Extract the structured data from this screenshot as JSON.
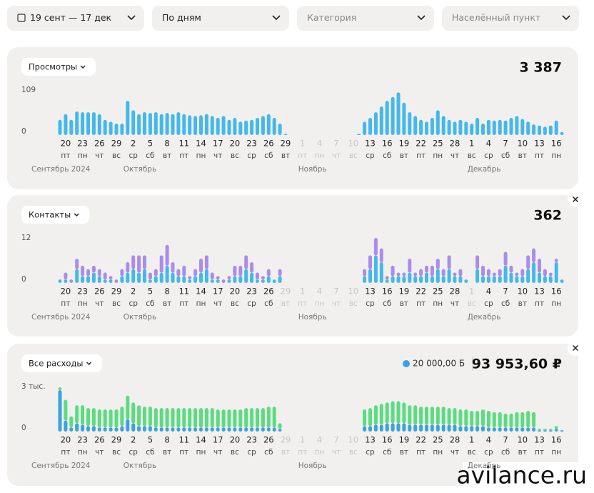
{
  "filters": [
    "19 сент — 17 дек",
    "По дням",
    "Категория",
    "Населённый пункт"
  ],
  "watermark": "avilance.ru",
  "chart_data": [
    {
      "type": "bar",
      "title": "Просмотры",
      "total": "3 387",
      "color": "#45b8ea",
      "ylim": [
        0,
        109
      ],
      "yticks": [
        0,
        109
      ],
      "categories": [
        null,
        "20",
        null,
        null,
        "23",
        null,
        null,
        "26",
        null,
        null,
        "29",
        null,
        null,
        "2",
        null,
        null,
        "5",
        null,
        null,
        "8",
        null,
        null,
        "11",
        null,
        null,
        "14",
        null,
        null,
        "17",
        null,
        null,
        "20",
        null,
        null,
        "23",
        null,
        null,
        "26",
        null,
        null,
        "29",
        null,
        null,
        "1",
        null,
        null,
        "4",
        null,
        null,
        "7",
        null,
        null,
        "10",
        null,
        null,
        "13",
        null,
        null,
        "16",
        null,
        null,
        "19",
        null,
        null,
        "22",
        null,
        null,
        "25",
        null,
        null,
        "28",
        null,
        null,
        "1",
        null,
        null,
        "4",
        null,
        null,
        "7",
        null,
        null,
        "10",
        null,
        null,
        "13",
        null,
        null,
        "16",
        null
      ],
      "weekdays": [
        null,
        "пт",
        null,
        null,
        "пн",
        null,
        null,
        "чт",
        null,
        null,
        "вс",
        null,
        null,
        "ср",
        null,
        null,
        "сб",
        null,
        null,
        "вт",
        null,
        null,
        "пт",
        null,
        null,
        "пн",
        null,
        null,
        "чт",
        null,
        null,
        "вс",
        null,
        null,
        "ср",
        null,
        null,
        "сб",
        null,
        null,
        "вт",
        null,
        null,
        "пт",
        null,
        null,
        "пн",
        null,
        null,
        "чт",
        null,
        null,
        "вс",
        null,
        null,
        "ср",
        null,
        null,
        "сб",
        null,
        null,
        "вт",
        null,
        null,
        "пт",
        null,
        null,
        "пн",
        null,
        null,
        "чт",
        null,
        null,
        "вс",
        null,
        null,
        "ср",
        null,
        null,
        "сб",
        null,
        null,
        "вт",
        null,
        null,
        "пт",
        null,
        null,
        "пн",
        null
      ],
      "months": [
        "Сентябрь 2024",
        null,
        null,
        null,
        null,
        null,
        null,
        null,
        null,
        null,
        null,
        null,
        "Октябрь",
        null,
        null,
        null,
        null,
        null,
        null,
        null,
        null,
        null,
        null,
        null,
        null,
        null,
        null,
        null,
        null,
        null,
        null,
        null,
        null,
        null,
        null,
        null,
        null,
        null,
        null,
        null,
        null,
        null,
        null,
        "Ноябрь",
        null,
        null,
        null,
        null,
        null,
        null,
        null,
        null,
        null,
        null,
        null,
        null,
        null,
        null,
        null,
        null,
        null,
        null,
        null,
        null,
        null,
        null,
        null,
        null,
        null,
        null,
        null,
        null,
        null,
        "Декабрь",
        null,
        null,
        null,
        null,
        null,
        null,
        null,
        null,
        null,
        null,
        null,
        null,
        null,
        null,
        null,
        null
      ],
      "values": [
        40,
        55,
        40,
        62,
        60,
        60,
        60,
        55,
        40,
        35,
        30,
        30,
        90,
        65,
        55,
        60,
        58,
        60,
        55,
        58,
        55,
        60,
        55,
        52,
        50,
        52,
        55,
        50,
        45,
        50,
        40,
        45,
        35,
        38,
        40,
        45,
        50,
        55,
        45,
        30,
        3,
        0,
        0,
        0,
        0,
        0,
        0,
        0,
        0,
        0,
        0,
        0,
        0,
        3,
        35,
        45,
        60,
        75,
        90,
        100,
        112,
        85,
        60,
        50,
        40,
        35,
        45,
        65,
        50,
        40,
        35,
        40,
        35,
        30,
        45,
        30,
        40,
        38,
        40,
        38,
        45,
        50,
        42,
        35,
        28,
        25,
        22,
        25,
        38,
        8
      ]
    },
    {
      "type": "bar",
      "title": "Контакты",
      "total": "362",
      "ylim": [
        0,
        12
      ],
      "yticks": [
        0,
        12
      ],
      "categories": [
        null,
        "20",
        null,
        null,
        "23",
        null,
        null,
        "26",
        null,
        null,
        "29",
        null,
        null,
        "2",
        null,
        null,
        "5",
        null,
        null,
        "8",
        null,
        null,
        "11",
        null,
        null,
        "14",
        null,
        null,
        "17",
        null,
        null,
        "20",
        null,
        null,
        "23",
        null,
        null,
        "26",
        null,
        null,
        "29",
        null,
        null,
        "1",
        null,
        null,
        "4",
        null,
        null,
        "7",
        null,
        null,
        "10",
        null,
        null,
        "13",
        null,
        null,
        "16",
        null,
        null,
        "19",
        null,
        null,
        "22",
        null,
        null,
        "25",
        null,
        null,
        "28",
        null,
        null,
        "1",
        null,
        null,
        "4",
        null,
        null,
        "7",
        null,
        null,
        "10",
        null,
        null,
        "13",
        null,
        null,
        "16",
        null
      ],
      "weekdays": [
        null,
        "пт",
        null,
        null,
        "пн",
        null,
        null,
        "чт",
        null,
        null,
        "вс",
        null,
        null,
        "ср",
        null,
        null,
        "сб",
        null,
        null,
        "вт",
        null,
        null,
        "пт",
        null,
        null,
        "пн",
        null,
        null,
        "чт",
        null,
        null,
        "вс",
        null,
        null,
        "ср",
        null,
        null,
        "сб",
        null,
        null,
        "вт",
        null,
        null,
        "пт",
        null,
        null,
        "пн",
        null,
        null,
        "чт",
        null,
        null,
        "вс",
        null,
        null,
        "ср",
        null,
        null,
        "сб",
        null,
        null,
        "вт",
        null,
        null,
        "пт",
        null,
        null,
        "пн",
        null,
        null,
        "чт",
        null,
        null,
        "вс",
        null,
        null,
        "ср",
        null,
        null,
        "сб",
        null,
        null,
        "вт",
        null,
        null,
        "пт",
        null,
        null,
        "пн",
        null
      ],
      "months": [
        "Сентябрь 2024",
        null,
        null,
        null,
        null,
        null,
        null,
        null,
        null,
        null,
        null,
        null,
        "Октябрь",
        null,
        null,
        null,
        null,
        null,
        null,
        null,
        null,
        null,
        null,
        null,
        null,
        null,
        null,
        null,
        null,
        null,
        null,
        null,
        null,
        null,
        null,
        null,
        null,
        null,
        null,
        null,
        null,
        null,
        null,
        "Ноябрь",
        null,
        null,
        null,
        null,
        null,
        null,
        null,
        null,
        null,
        null,
        null,
        null,
        null,
        null,
        null,
        null,
        null,
        null,
        null,
        null,
        null,
        null,
        null,
        null,
        null,
        null,
        null,
        null,
        null,
        "Декабрь",
        null,
        null,
        null,
        null,
        null,
        null,
        null,
        null,
        null,
        null,
        null,
        null,
        null,
        null,
        null,
        null
      ],
      "series": [
        {
          "color": "#45b8ea",
          "values": [
            1,
            1,
            0,
            4,
            2,
            2,
            3,
            2,
            1,
            1,
            0,
            2,
            3,
            4,
            3,
            4,
            1,
            2,
            3,
            5,
            3,
            2,
            2,
            1,
            2,
            3,
            4,
            1,
            1,
            0,
            1,
            2,
            2,
            4,
            3,
            1,
            1,
            2,
            1,
            2,
            0,
            0,
            0,
            0,
            0,
            0,
            0,
            0,
            0,
            0,
            0,
            0,
            0,
            0,
            2,
            4,
            8,
            6,
            1,
            2,
            2,
            2,
            3,
            2,
            2,
            3,
            2,
            4,
            2,
            4,
            2,
            2,
            1,
            0,
            4,
            2,
            2,
            2,
            2,
            5,
            3,
            2,
            2,
            4,
            6,
            3,
            2,
            2,
            6,
            1
          ]
        },
        {
          "color": "#ab8ce9",
          "values": [
            0,
            2,
            1,
            3,
            3,
            2,
            2,
            2,
            2,
            1,
            1,
            2,
            3,
            4,
            5,
            4,
            2,
            2,
            5,
            6,
            3,
            2,
            3,
            1,
            2,
            4,
            4,
            2,
            1,
            1,
            1,
            3,
            3,
            4,
            3,
            2,
            1,
            2,
            0,
            2,
            0,
            0,
            0,
            0,
            0,
            0,
            0,
            0,
            0,
            0,
            0,
            0,
            0,
            0,
            2,
            4,
            5,
            4,
            1,
            3,
            1,
            1,
            4,
            1,
            2,
            2,
            3,
            3,
            2,
            4,
            1,
            2,
            0,
            0,
            4,
            3,
            2,
            1,
            2,
            4,
            2,
            1,
            2,
            4,
            4,
            4,
            2,
            1,
            1,
            0
          ]
        }
      ]
    },
    {
      "type": "bar",
      "title": "Все расходы",
      "total": "93 953,60 ₽",
      "budget": "20 000,00 Б",
      "ylim": [
        0,
        3000
      ],
      "yticks": [
        0,
        {
          "value": 3000,
          "label": "3 тыс."
        }
      ],
      "categories": [
        null,
        "20",
        null,
        null,
        "23",
        null,
        null,
        "26",
        null,
        null,
        "29",
        null,
        null,
        "2",
        null,
        null,
        "5",
        null,
        null,
        "8",
        null,
        null,
        "11",
        null,
        null,
        "14",
        null,
        null,
        "17",
        null,
        null,
        "20",
        null,
        null,
        "23",
        null,
        null,
        "26",
        null,
        null,
        "29",
        null,
        null,
        "1",
        null,
        null,
        "4",
        null,
        null,
        "7",
        null,
        null,
        "10",
        null,
        null,
        "13",
        null,
        null,
        "16",
        null,
        null,
        "19",
        null,
        null,
        "22",
        null,
        null,
        "25",
        null,
        null,
        "28",
        null,
        null,
        "1",
        null,
        null,
        "4",
        null,
        null,
        "7",
        null,
        null,
        "10",
        null,
        null,
        "13",
        null,
        null,
        "16",
        null
      ],
      "weekdays": [
        null,
        "пт",
        null,
        null,
        "пн",
        null,
        null,
        "чт",
        null,
        null,
        "вс",
        null,
        null,
        "ср",
        null,
        null,
        "сб",
        null,
        null,
        "вт",
        null,
        null,
        "пт",
        null,
        null,
        "пн",
        null,
        null,
        "чт",
        null,
        null,
        "вс",
        null,
        null,
        "ср",
        null,
        null,
        "сб",
        null,
        null,
        "вт",
        null,
        null,
        "пт",
        null,
        null,
        "пн",
        null,
        null,
        "чт",
        null,
        null,
        "вс",
        null,
        null,
        "ср",
        null,
        null,
        "сб",
        null,
        null,
        "вт",
        null,
        null,
        "пт",
        null,
        null,
        "пн",
        null,
        null,
        "чт",
        null,
        null,
        "вс",
        null,
        null,
        "ср",
        null,
        null,
        "сб",
        null,
        null,
        "вт",
        null,
        null,
        "пт",
        null,
        null,
        "пн",
        null
      ],
      "months": [
        "Сентябрь 2024",
        null,
        null,
        null,
        null,
        null,
        null,
        null,
        null,
        null,
        null,
        null,
        "Октябрь",
        null,
        null,
        null,
        null,
        null,
        null,
        null,
        null,
        null,
        null,
        null,
        null,
        null,
        null,
        null,
        null,
        null,
        null,
        null,
        null,
        null,
        null,
        null,
        null,
        null,
        null,
        null,
        null,
        null,
        null,
        "Ноябрь",
        null,
        null,
        null,
        null,
        null,
        null,
        null,
        null,
        null,
        null,
        null,
        null,
        null,
        null,
        null,
        null,
        null,
        null,
        null,
        null,
        null,
        null,
        null,
        null,
        null,
        null,
        null,
        null,
        null,
        "Декабрь",
        null,
        null,
        null,
        null,
        null,
        null,
        null,
        null,
        null,
        null,
        null,
        null,
        null,
        null,
        null,
        null
      ],
      "series": [
        {
          "color": "#3aa2e2",
          "values": [
            3000,
            800,
            300,
            600,
            500,
            400,
            400,
            300,
            300,
            300,
            300,
            400,
            900,
            600,
            400,
            400,
            400,
            300,
            300,
            300,
            300,
            300,
            300,
            300,
            300,
            300,
            300,
            300,
            300,
            300,
            300,
            300,
            300,
            300,
            300,
            300,
            300,
            300,
            300,
            200,
            0,
            0,
            0,
            0,
            0,
            0,
            0,
            0,
            0,
            0,
            0,
            0,
            0,
            0,
            400,
            400,
            500,
            500,
            600,
            600,
            600,
            600,
            500,
            500,
            500,
            500,
            500,
            500,
            500,
            500,
            500,
            400,
            400,
            400,
            400,
            400,
            300,
            300,
            300,
            300,
            300,
            300,
            300,
            300,
            300,
            100,
            100,
            100,
            200,
            100
          ]
        },
        {
          "color": "#5bdc7f",
          "values": [
            200,
            1500,
            800,
            1300,
            1400,
            1300,
            1300,
            1300,
            1300,
            1300,
            1300,
            1400,
            1700,
            1500,
            1500,
            1400,
            1400,
            1400,
            1400,
            1400,
            1400,
            1400,
            1400,
            1400,
            1400,
            1400,
            1400,
            1400,
            1300,
            1300,
            1300,
            1300,
            1300,
            1400,
            1400,
            1400,
            1400,
            1500,
            1500,
            400,
            0,
            0,
            0,
            0,
            0,
            0,
            0,
            0,
            0,
            0,
            0,
            0,
            0,
            0,
            1200,
            1300,
            1400,
            1500,
            1500,
            1600,
            1600,
            1500,
            1400,
            1400,
            1300,
            1300,
            1300,
            1300,
            1300,
            1200,
            1200,
            1200,
            1200,
            1100,
            1100,
            1200,
            1200,
            1100,
            1100,
            1000,
            1000,
            1100,
            1100,
            1200,
            1100,
            100,
            100,
            100,
            200,
            0
          ]
        }
      ]
    }
  ]
}
